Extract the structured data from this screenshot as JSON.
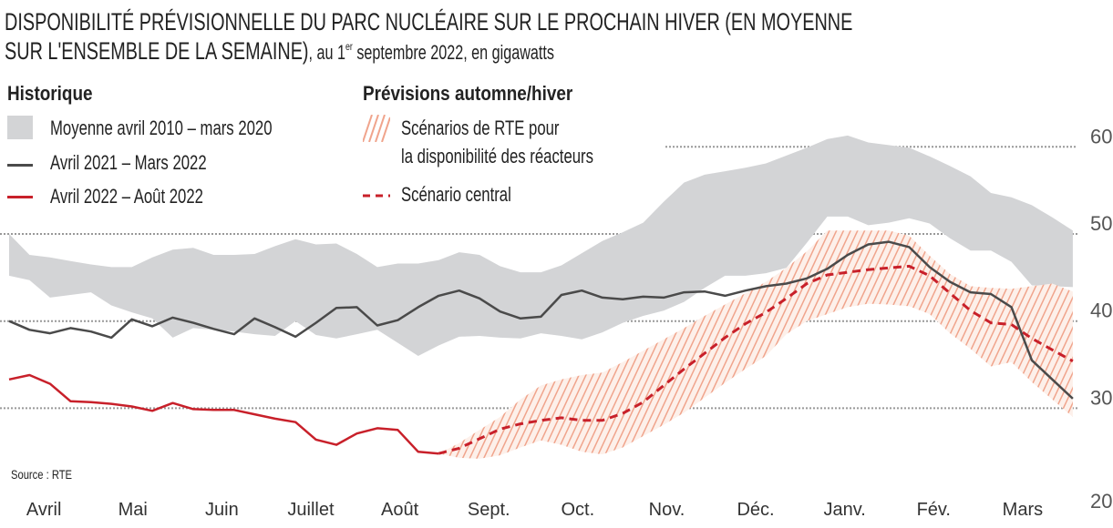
{
  "title_line1": "DISPONIBILITÉ PRÉVISIONNELLE DU PARC NUCLÉAIRE SUR LE PROCHAIN HIVER (EN MOYENNE",
  "title_line2": "SUR L'ENSEMBLE DE LA SEMAINE)",
  "subtitle_pre": ", au 1",
  "subtitle_sup": "er",
  "subtitle_post": " septembre 2022, en gigawatts",
  "legend": {
    "historique_title": "Historique",
    "previsions_title": "Prévisions automne/hiver",
    "items": [
      {
        "label": "Moyenne avril 2010 – mars 2020"
      },
      {
        "label": "Avril 2021 – Mars 2022"
      },
      {
        "label": "Avril 2022 – Août 2022"
      },
      {
        "label_line1": "Scénarios de RTE pour",
        "label_line2": "la disponibilité des réacteurs"
      },
      {
        "label": "Scénario central"
      }
    ]
  },
  "source": "Source : RTE",
  "colors": {
    "band_gray": "#d3d4d6",
    "line_2021": "#4a4a4a",
    "line_2022": "#c8202a",
    "hatch": "#f0a48c",
    "central": "#c8202a",
    "grid": "#999999"
  },
  "chart_data": {
    "type": "line",
    "xlabel": "",
    "ylabel": "",
    "x_unit": "week index from early April (weekly data)",
    "month_labels": [
      "Avril",
      "Mai",
      "Juin",
      "Juillet",
      "Août",
      "Sept.",
      "Oct.",
      "Nov.",
      "Déc.",
      "Janv.",
      "Fév.",
      "Mars"
    ],
    "y_ticks": [
      20,
      30,
      40,
      50,
      60
    ],
    "ylim": [
      20,
      62
    ],
    "y_axis_side": "right",
    "grid": "horizontal dotted",
    "legend_placement": "top-left",
    "series": [
      {
        "name": "Moyenne avril 2010 – mars 2020",
        "kind": "band",
        "upper": [
          50.0,
          47.6,
          47.3,
          46.9,
          46.5,
          46.2,
          46.2,
          47.3,
          48.2,
          48.4,
          47.6,
          47.6,
          47.7,
          48.6,
          49.4,
          48.8,
          48.9,
          47.7,
          46.2,
          46.6,
          46.6,
          47.0,
          47.9,
          47.6,
          46.3,
          45.6,
          45.6,
          46.4,
          47.8,
          49.2,
          50.2,
          51.3,
          53.7,
          55.9,
          56.8,
          57.2,
          57.6,
          58.1,
          59.0,
          59.9,
          60.9,
          61.3,
          60.5,
          60.2,
          59.9,
          58.9,
          57.8,
          56.6,
          54.7,
          54.2,
          53.3,
          51.9,
          50.4
        ],
        "lower": [
          45.2,
          44.7,
          42.7,
          43.0,
          43.3,
          41.8,
          41.0,
          40.3,
          38.1,
          39.2,
          39.0,
          38.8,
          38.5,
          38.3,
          40.0,
          38.4,
          38.0,
          38.5,
          39.0,
          37.5,
          36.0,
          37.2,
          38.2,
          38.3,
          38.1,
          38.0,
          38.6,
          38.3,
          37.9,
          38.7,
          39.8,
          40.6,
          41.2,
          42.2,
          43.8,
          45.2,
          45.2,
          45.5,
          46.1,
          49.0,
          52.0,
          52.0,
          51.0,
          51.3,
          51.8,
          51.2,
          49.5,
          48.1,
          48.1,
          46.8,
          44.1,
          44.0,
          43.9
        ]
      },
      {
        "name": "Avril 2021 – Mars 2022",
        "kind": "line",
        "start_week": 0,
        "values": [
          40.0,
          39.0,
          38.6,
          39.2,
          38.8,
          38.1,
          40.2,
          39.4,
          40.4,
          39.8,
          39.1,
          38.5,
          40.3,
          39.3,
          38.2,
          39.8,
          41.5,
          41.6,
          39.5,
          40.1,
          41.6,
          42.9,
          43.5,
          42.6,
          41.1,
          40.3,
          40.5,
          43.0,
          43.5,
          42.7,
          42.5,
          42.8,
          42.7,
          43.3,
          43.4,
          42.9,
          43.5,
          44.0,
          44.3,
          44.9,
          46.0,
          47.6,
          48.8,
          49.1,
          48.5,
          46.2,
          44.5,
          43.3,
          43.1,
          41.6,
          35.5,
          33.3,
          31.1
        ]
      },
      {
        "name": "Avril 2022 – Août 2022",
        "kind": "line",
        "start_week": 0,
        "values": [
          33.3,
          33.8,
          32.8,
          30.8,
          30.7,
          30.5,
          30.2,
          29.7,
          30.6,
          29.9,
          29.8,
          29.8,
          29.3,
          28.8,
          28.4,
          26.4,
          25.8,
          27.1,
          27.7,
          27.5,
          25.0,
          24.8
        ]
      },
      {
        "name": "Scénarios de RTE pour la disponibilité des réacteurs",
        "kind": "band",
        "start_week": 21,
        "upper": [
          24.8,
          26.0,
          27.5,
          29.0,
          31.0,
          32.6,
          33.3,
          33.8,
          34.1,
          35.3,
          36.6,
          37.9,
          39.2,
          40.6,
          41.9,
          43.2,
          44.5,
          46.1,
          48.0,
          50.4,
          50.4,
          50.4,
          50.4,
          49.8,
          47.5,
          45.4,
          44.0,
          43.8,
          43.7,
          44.0,
          44.3,
          43.4
        ],
        "lower": [
          24.8,
          24.3,
          24.2,
          24.6,
          25.5,
          26.3,
          25.8,
          25.0,
          24.7,
          25.5,
          26.8,
          28.1,
          29.5,
          31.2,
          32.9,
          34.5,
          36.0,
          38.5,
          40.0,
          40.8,
          41.6,
          42.0,
          41.9,
          41.7,
          40.8,
          38.6,
          36.8,
          34.8,
          35.3,
          33.0,
          31.0,
          29.0
        ]
      },
      {
        "name": "Scénario central",
        "kind": "dashed-line",
        "start_week": 21,
        "values": [
          24.8,
          25.4,
          26.5,
          27.6,
          28.2,
          28.6,
          28.9,
          28.6,
          28.6,
          29.4,
          30.7,
          32.6,
          34.5,
          36.3,
          38.1,
          39.7,
          41.0,
          42.6,
          44.3,
          45.3,
          45.6,
          45.9,
          46.1,
          46.3,
          45.2,
          43.2,
          41.2,
          39.8,
          39.6,
          38.0,
          36.7,
          35.4
        ]
      }
    ]
  }
}
